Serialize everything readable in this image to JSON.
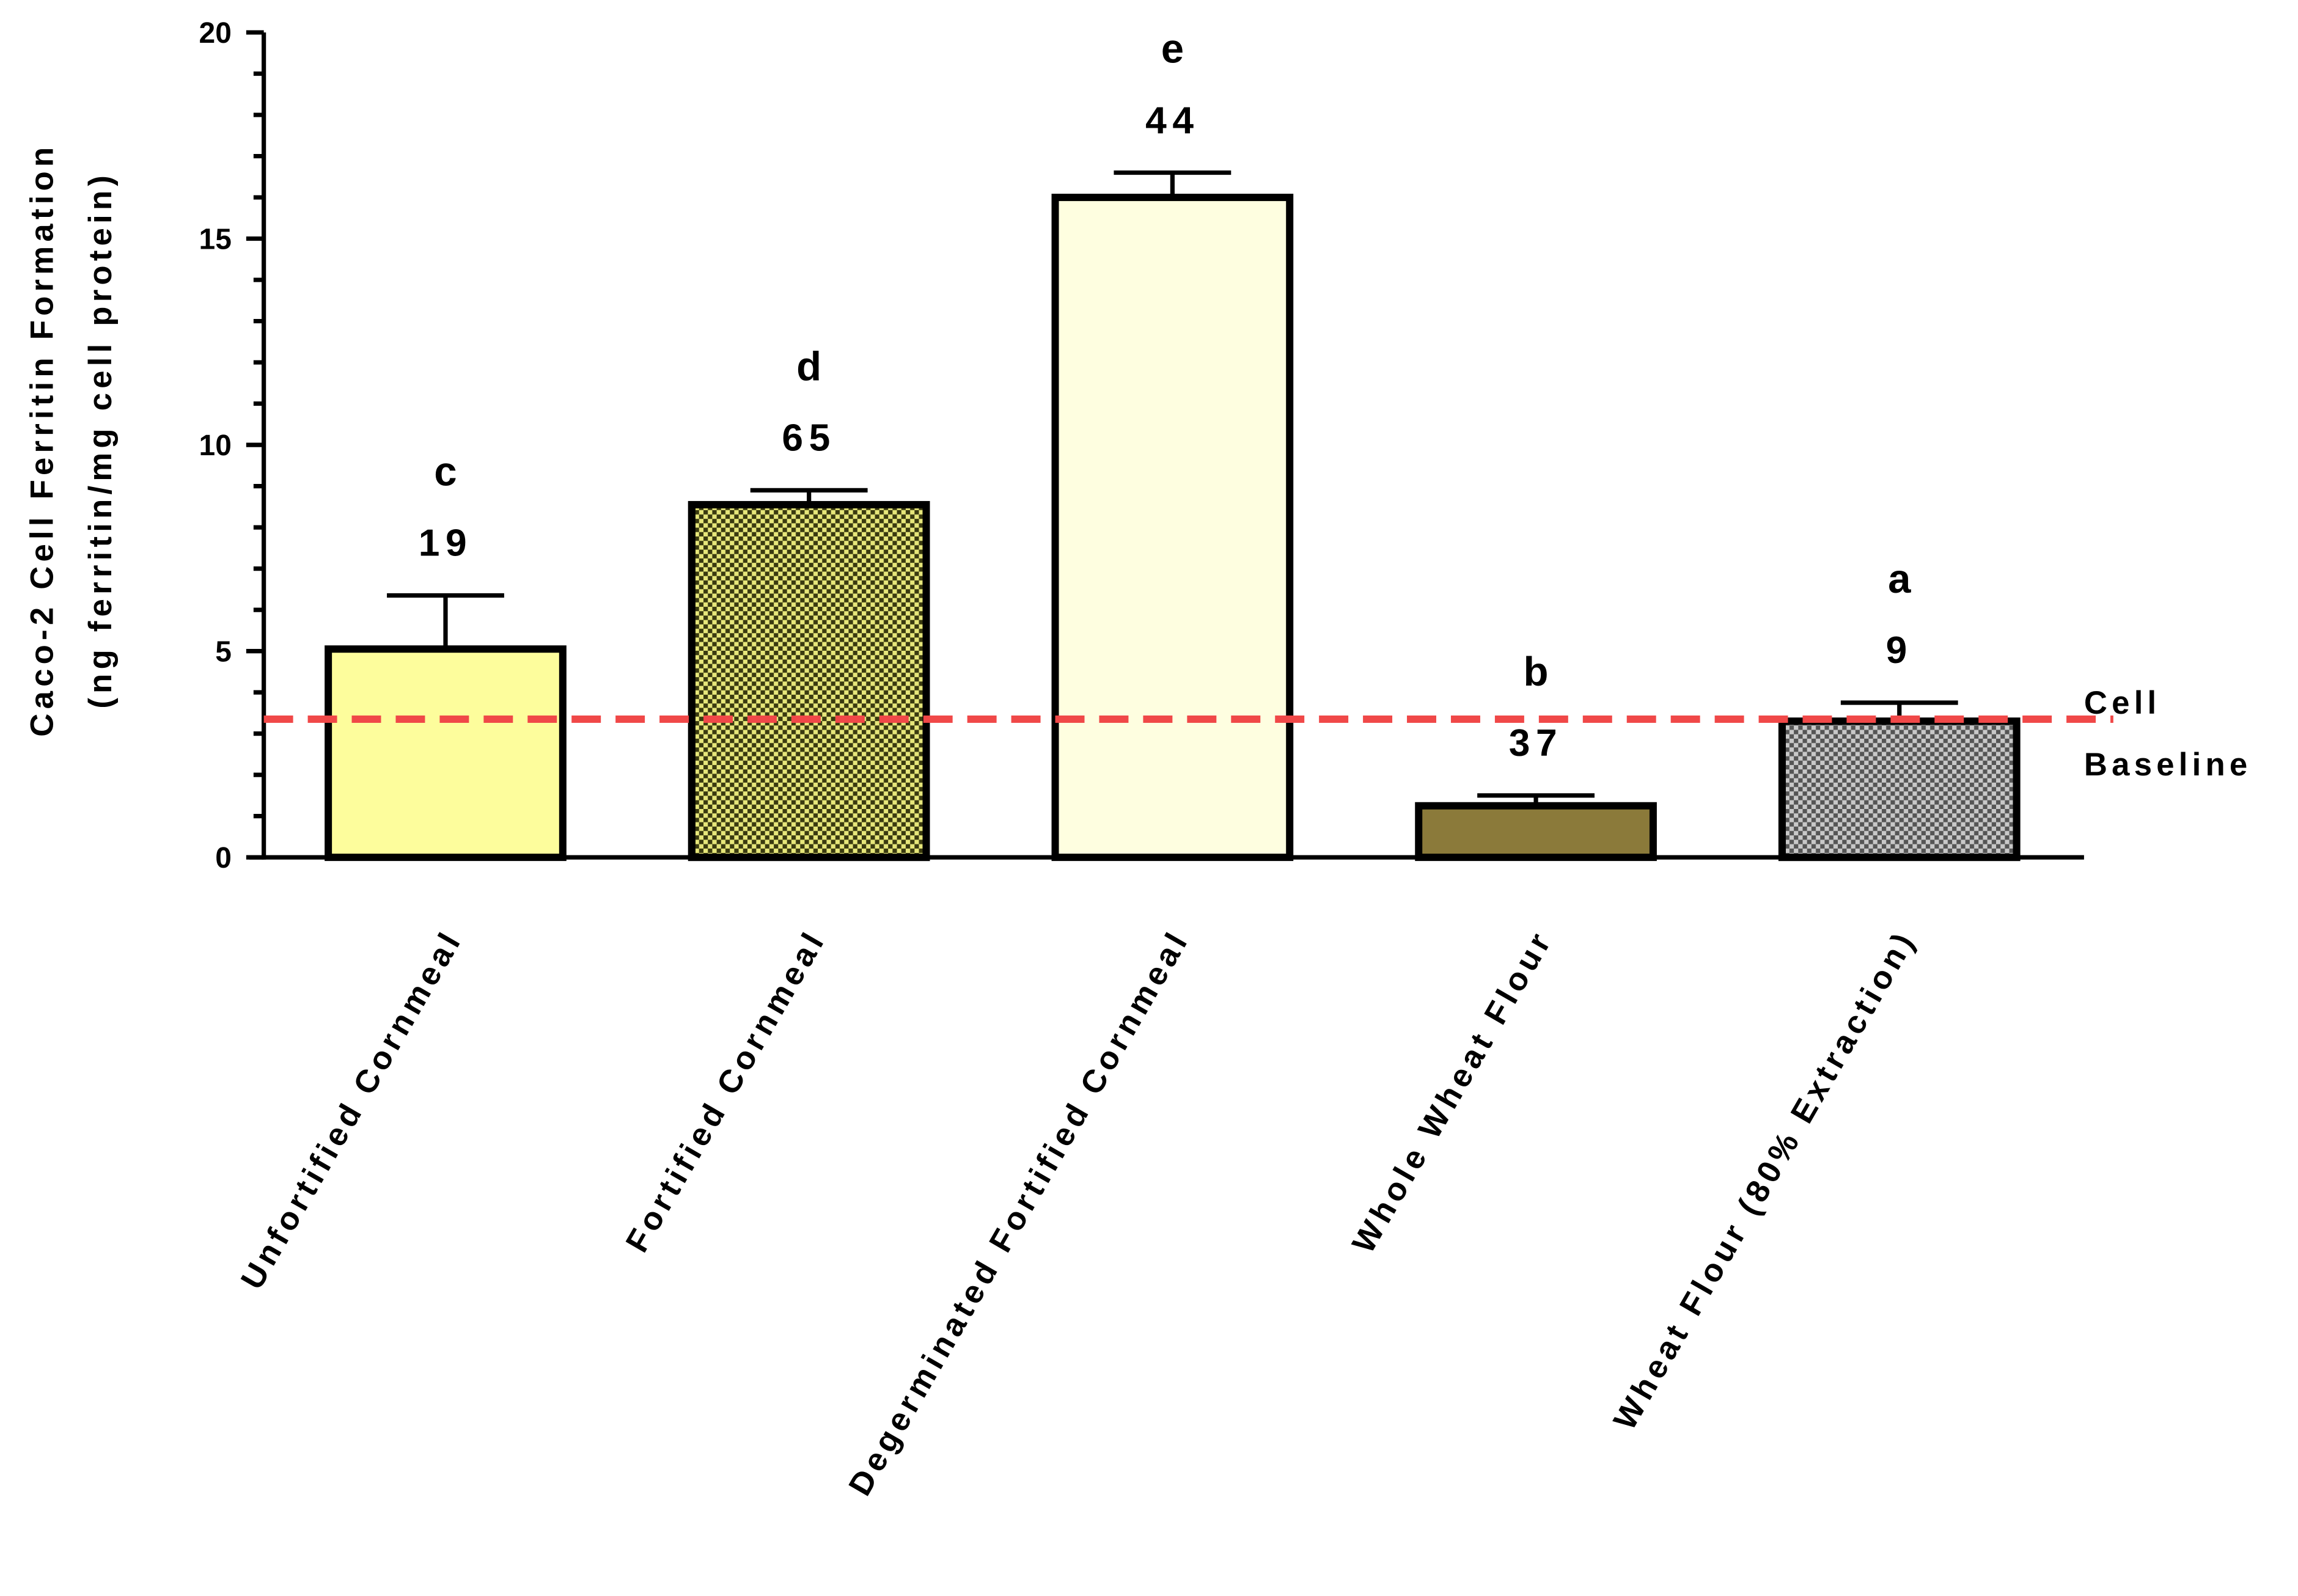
{
  "chart_data": {
    "type": "bar",
    "ylabel": [
      "Caco-2 Cell Ferritin  Formation",
      "(ng ferritin/mg cell protein)"
    ],
    "categories": [
      "Unfortified Cornmeal",
      "Fortified Cornmeal",
      "Degerminated Fortified Cornmeal",
      "Whole Wheat Flour",
      "Wheat Flour (80% Extraction)"
    ],
    "values": [
      5.05,
      8.55,
      16.0,
      1.25,
      3.3
    ],
    "errors": [
      1.3,
      0.35,
      0.6,
      0.25,
      0.45
    ],
    "colors": [
      "#fdfd9c",
      "#e6e67a",
      "#fefee0",
      "#8b7a3a",
      "#c8c8c8"
    ],
    "hatch": [
      false,
      true,
      false,
      false,
      true
    ],
    "group_letters": [
      "c",
      "d",
      "e",
      "b",
      "a"
    ],
    "bar_numbers": [
      19,
      65,
      44,
      37,
      9
    ],
    "baseline": {
      "value": 3.35,
      "label": [
        "Cell",
        "Baseline"
      ],
      "color": "#f04848"
    },
    "ylim": [
      0,
      20
    ],
    "yticks": [
      0,
      5,
      10,
      15,
      20
    ],
    "yminorticks": [
      1,
      2,
      3,
      4,
      6,
      7,
      8,
      9,
      11,
      12,
      13,
      14,
      16,
      17,
      18,
      19
    ]
  }
}
